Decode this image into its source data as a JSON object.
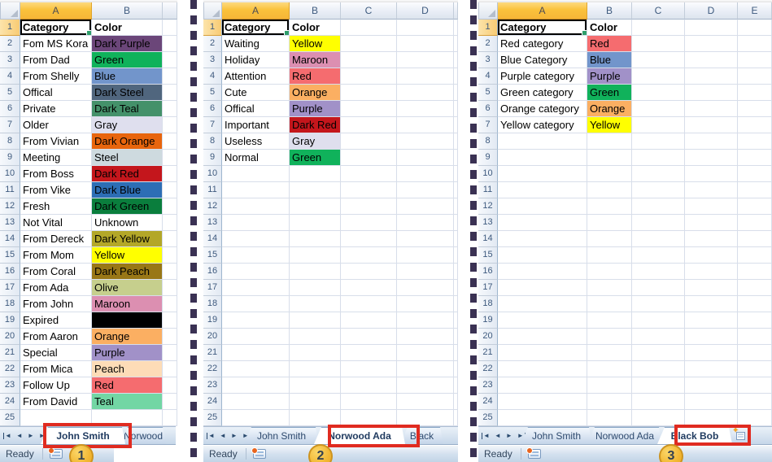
{
  "app": "Excel worksheet comparison - Outlook category colors on three sheets",
  "status_label": "Ready",
  "accent_colors": {
    "highlight_box": "#E02B20",
    "callout_fill": "#F2B733",
    "divider_dash": "#3A3153",
    "selected_header": "#FAC23C"
  },
  "icons": {
    "tab_nav": [
      "scroll-first-icon",
      "scroll-prev-icon",
      "scroll-next-icon",
      "scroll-last-icon"
    ],
    "status": "macro-record-icon",
    "insert": "insert-worksheet-icon",
    "corner": "select-all-corner-icon",
    "fill_handle": "fill-handle"
  },
  "panels": [
    {
      "callout": "1",
      "active_sheet": "John Smith",
      "column_letters": [
        "A",
        "B",
        ""
      ],
      "headers": {
        "category": "Category",
        "color": "Color"
      },
      "rows": [
        {
          "n": 2,
          "category": "Fom MS Kora",
          "color": "Dark Purple",
          "bg": "#6B4679"
        },
        {
          "n": 3,
          "category": "From Dad",
          "color": "Green",
          "bg": "#10B25B"
        },
        {
          "n": 4,
          "category": "From Shelly",
          "color": "Blue",
          "bg": "#7295CB"
        },
        {
          "n": 5,
          "category": "Offical",
          "color": "Dark Steel",
          "bg": "#50667E"
        },
        {
          "n": 6,
          "category": "Private",
          "color": "Dark Teal",
          "bg": "#44916A"
        },
        {
          "n": 7,
          "category": "Older",
          "color": "Gray",
          "bg": "#DFDFEE"
        },
        {
          "n": 8,
          "category": "From Vivian",
          "color": "Dark Orange",
          "bg": "#E8650D"
        },
        {
          "n": 9,
          "category": "Meeting",
          "color": "Steel",
          "bg": "#CEDADF"
        },
        {
          "n": 10,
          "category": "From Boss",
          "color": "Dark Red",
          "bg": "#C4161C"
        },
        {
          "n": 11,
          "category": "From Vike",
          "color": "Dark Blue",
          "bg": "#2D6EB5"
        },
        {
          "n": 12,
          "category": "Fresh",
          "color": "Dark Green",
          "bg": "#0A7E3D"
        },
        {
          "n": 13,
          "category": "Not Vital",
          "color": "Unknown",
          "bg": ""
        },
        {
          "n": 14,
          "category": "From Dereck",
          "color": "Dark Yellow",
          "bg": "#B3A728"
        },
        {
          "n": 15,
          "category": "From Mom",
          "color": "Yellow",
          "bg": "#FFFF00"
        },
        {
          "n": 16,
          "category": "From Coral",
          "color": "Dark Peach",
          "bg": "#997716"
        },
        {
          "n": 17,
          "category": "From Ada",
          "color": "Olive",
          "bg": "#C6CF8D"
        },
        {
          "n": 18,
          "category": "From John",
          "color": "Maroon",
          "bg": "#DC8FB1"
        },
        {
          "n": 19,
          "category": "Expired",
          "color": "",
          "bg": "#000000"
        },
        {
          "n": 20,
          "category": "From Aaron",
          "color": "Orange",
          "bg": "#FBAF62"
        },
        {
          "n": 21,
          "category": "Special",
          "color": "Purple",
          "bg": "#A191C8"
        },
        {
          "n": 22,
          "category": "From Mica",
          "color": "Peach",
          "bg": "#FDDCB7"
        },
        {
          "n": 23,
          "category": "Follow Up",
          "color": "Red",
          "bg": "#F56C6F"
        },
        {
          "n": 24,
          "category": "From David",
          "color": "Teal",
          "bg": "#72D6A4"
        }
      ],
      "tabs": [
        {
          "label": "John Smith",
          "active": true,
          "highlighted": true
        },
        {
          "label": "Norwood",
          "active": false,
          "highlighted": false
        }
      ],
      "insert_tab": false
    },
    {
      "callout": "2",
      "active_sheet": "Norwood Ada",
      "column_letters": [
        "A",
        "B",
        "C",
        "D",
        ""
      ],
      "headers": {
        "category": "Category",
        "color": "Color"
      },
      "rows": [
        {
          "n": 2,
          "category": "Waiting",
          "color": "Yellow",
          "bg": "#FFFF00"
        },
        {
          "n": 3,
          "category": "Holiday",
          "color": "Maroon",
          "bg": "#DC8FB1"
        },
        {
          "n": 4,
          "category": "Attention",
          "color": "Red",
          "bg": "#F56C6F"
        },
        {
          "n": 5,
          "category": "Cute",
          "color": "Orange",
          "bg": "#FBAF62"
        },
        {
          "n": 6,
          "category": "Offical",
          "color": "Purple",
          "bg": "#A191C8"
        },
        {
          "n": 7,
          "category": "Important",
          "color": "Dark Red",
          "bg": "#C4161C"
        },
        {
          "n": 8,
          "category": "Useless",
          "color": "Gray",
          "bg": "#DFDFEE"
        },
        {
          "n": 9,
          "category": "Normal",
          "color": "Green",
          "bg": "#10B25B"
        }
      ],
      "tabs": [
        {
          "label": "John Smith",
          "active": false,
          "highlighted": false
        },
        {
          "label": "Norwood Ada",
          "active": true,
          "highlighted": true
        },
        {
          "label": "Black",
          "active": false,
          "highlighted": false
        }
      ],
      "insert_tab": false
    },
    {
      "callout": "3",
      "active_sheet": "Black Bob",
      "column_letters": [
        "A",
        "B",
        "C",
        "D",
        "E"
      ],
      "headers": {
        "category": "Category",
        "color": "Color"
      },
      "rows": [
        {
          "n": 2,
          "category": "Red category",
          "color": "Red",
          "bg": "#F56C6F"
        },
        {
          "n": 3,
          "category": "Blue Category",
          "color": "Blue",
          "bg": "#7295CB"
        },
        {
          "n": 4,
          "category": "Purple category",
          "color": "Purple",
          "bg": "#A191C8"
        },
        {
          "n": 5,
          "category": "Green category",
          "color": "Green",
          "bg": "#10B25B"
        },
        {
          "n": 6,
          "category": "Orange category",
          "color": "Orange",
          "bg": "#FBAF62"
        },
        {
          "n": 7,
          "category": "Yellow category",
          "color": "Yellow",
          "bg": "#FFFF00"
        }
      ],
      "tabs": [
        {
          "label": "John Smith",
          "active": false,
          "highlighted": false
        },
        {
          "label": "Norwood Ada",
          "active": false,
          "highlighted": false
        },
        {
          "label": "Black Bob",
          "active": true,
          "highlighted": true
        }
      ],
      "insert_tab": true
    }
  ]
}
